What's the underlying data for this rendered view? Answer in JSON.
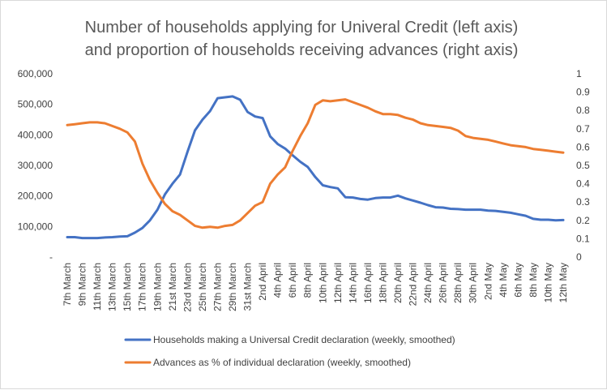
{
  "chart_data": {
    "type": "line",
    "title": [
      "Number of households applying for Univeral Credit (left axis)",
      "and proportion of households receiving advances (right axis)"
    ],
    "left_axis": {
      "min": 0,
      "max": 600000,
      "ticks": [
        0,
        100000,
        200000,
        300000,
        400000,
        500000,
        600000
      ],
      "tick_labels": [
        "-",
        "100,000",
        "200,000",
        "300,000",
        "400,000",
        "500,000",
        "600,000"
      ]
    },
    "right_axis": {
      "min": 0,
      "max": 1,
      "ticks": [
        0,
        0.1,
        0.2,
        0.3,
        0.4,
        0.5,
        0.6,
        0.7,
        0.8,
        0.9,
        1
      ],
      "tick_labels": [
        "0",
        "0.1",
        "0.2",
        "0.3",
        "0.4",
        "0.5",
        "0.6",
        "0.7",
        "0.8",
        "0.9",
        "1"
      ]
    },
    "x_tick_labels": [
      "7th March",
      "9th March",
      "11th March",
      "13th March",
      "15th March",
      "17th March",
      "19th March",
      "21st March",
      "23rd March",
      "25th March",
      "27th March",
      "29th March",
      "31st March",
      "2nd April",
      "4th April",
      "6th April",
      "8th April",
      "10th April",
      "12th April",
      "14th April",
      "16th April",
      "18th April",
      "20th April",
      "22nd April",
      "24th April",
      "26th April",
      "28th April",
      "30th April",
      "2nd May",
      "4th May",
      "6th May",
      "8th May",
      "10th May",
      "12th May"
    ],
    "grid": false,
    "legend": "bottom",
    "series": [
      {
        "name": "Households making a Universal Credit declaration (weekly, smoothed)",
        "axis": "left",
        "color": "#4472c4",
        "values": [
          65000,
          65000,
          62000,
          62000,
          62000,
          64000,
          65000,
          67000,
          68000,
          80000,
          95000,
          120000,
          155000,
          205000,
          240000,
          270000,
          345000,
          415000,
          450000,
          478000,
          520000,
          523000,
          526000,
          515000,
          475000,
          460000,
          455000,
          395000,
          370000,
          355000,
          333000,
          312000,
          295000,
          262000,
          235000,
          229000,
          225000,
          196000,
          195000,
          190000,
          188000,
          193000,
          195000,
          195000,
          201000,
          192000,
          185000,
          178000,
          170000,
          163000,
          162000,
          158000,
          157000,
          155000,
          155000,
          155000,
          152000,
          151000,
          148000,
          145000,
          140000,
          135000,
          125000,
          122000,
          122000,
          120000,
          121000
        ]
      },
      {
        "name": "Advances as % of individual declaration (weekly, smoothed)",
        "axis": "right",
        "color": "#ed7d31",
        "values": [
          0.72,
          0.725,
          0.73,
          0.735,
          0.735,
          0.73,
          0.715,
          0.7,
          0.68,
          0.63,
          0.51,
          0.42,
          0.35,
          0.29,
          0.25,
          0.23,
          0.2,
          0.17,
          0.16,
          0.165,
          0.16,
          0.17,
          0.175,
          0.2,
          0.24,
          0.28,
          0.3,
          0.4,
          0.45,
          0.49,
          0.58,
          0.66,
          0.73,
          0.83,
          0.855,
          0.85,
          0.855,
          0.86,
          0.845,
          0.83,
          0.815,
          0.795,
          0.78,
          0.78,
          0.775,
          0.76,
          0.75,
          0.73,
          0.72,
          0.715,
          0.71,
          0.705,
          0.69,
          0.66,
          0.65,
          0.645,
          0.64,
          0.63,
          0.62,
          0.61,
          0.605,
          0.6,
          0.59,
          0.585,
          0.58,
          0.575,
          0.57
        ]
      }
    ]
  }
}
